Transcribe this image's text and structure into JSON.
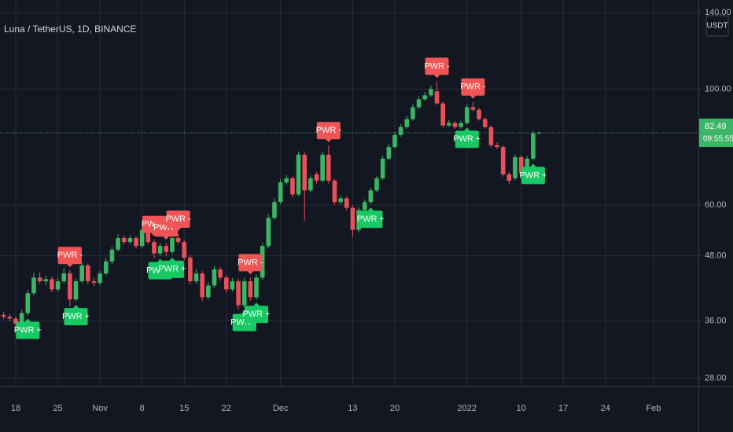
{
  "chart_data": {
    "type": "candlestick",
    "title": "Luna / TetherUS, 1D, BINANCE",
    "currency": "USDT",
    "countdown": "09:55:55",
    "log_scale": true,
    "grid": true,
    "up_color": "#3bb566",
    "down_color": "#e8515b",
    "buy_color": "#17c964",
    "sell_color": "#f05454",
    "ylim": [
      27,
      148
    ],
    "yticks": [
      {
        "value": 28,
        "label": "28.00"
      },
      {
        "value": 36,
        "label": "36.00"
      },
      {
        "value": 48,
        "label": "48.00"
      },
      {
        "value": 60,
        "label": "60.00"
      },
      {
        "value": 100,
        "label": "100.00"
      },
      {
        "value": 140,
        "label": "140.00"
      }
    ],
    "categories": [
      null,
      null,
      "18",
      null,
      null,
      null,
      null,
      null,
      null,
      "25",
      null,
      null,
      null,
      null,
      null,
      null,
      "Nov",
      null,
      null,
      null,
      null,
      null,
      null,
      "8",
      null,
      null,
      null,
      null,
      null,
      null,
      "15",
      null,
      null,
      null,
      null,
      null,
      null,
      "22",
      null,
      null,
      null,
      null,
      null,
      null,
      null,
      null,
      "Dec",
      null,
      null,
      null,
      null,
      null,
      null,
      null,
      null,
      null,
      null,
      null,
      "13",
      null,
      null,
      null,
      null,
      null,
      null,
      "20",
      null,
      null,
      null,
      null,
      null,
      null,
      null,
      null,
      null,
      null,
      null,
      "2022",
      null,
      null,
      null,
      null,
      null,
      null,
      null,
      null,
      "10",
      null,
      null,
      null,
      null,
      null,
      null,
      "17",
      null,
      null,
      null,
      null,
      null,
      null,
      "24",
      null,
      null,
      null,
      null,
      null,
      null,
      null,
      "Feb",
      null,
      null,
      null,
      null,
      null,
      null
    ],
    "open": [
      37.0,
      36.7,
      36.4,
      35.6,
      37.3,
      40.7,
      43.6,
      42.9,
      43.3,
      41.4,
      42.9,
      44.4,
      39.6,
      42.9,
      46.0,
      42.9,
      42.6,
      44.4,
      46.8,
      49.3,
      51.9,
      51.0,
      51.9,
      50.1,
      53.8,
      51.0,
      48.5,
      50.1,
      48.8,
      51.9,
      51.0,
      47.6,
      42.9,
      44.4,
      40.0,
      42.1,
      45.2,
      43.6,
      41.4,
      42.9,
      38.6,
      42.9,
      40.0,
      43.6,
      50.1,
      56.7,
      60.8,
      66.3,
      67.5,
      62.9,
      74.9,
      64.0,
      68.7,
      66.8,
      74.9,
      66.8,
      60.8,
      61.8,
      59.3,
      53.8,
      58.7,
      60.8,
      64.0,
      67.5,
      73.6,
      77.5,
      81.7,
      84.6,
      87.6,
      92.3,
      95.6,
      97.3,
      99.0,
      93.9,
      85.2,
      86.1,
      84.6,
      86.1,
      92.3,
      91.3,
      87.6,
      84.6,
      78.1,
      77.5,
      68.7,
      67.5,
      74.1,
      69.1,
      73.6,
      82.3,
      null,
      null,
      null,
      null,
      null,
      null,
      null,
      null,
      null,
      null,
      null,
      null,
      null,
      null,
      null,
      null,
      null,
      null,
      null,
      null,
      null,
      null,
      null,
      null,
      null
    ],
    "high": [
      37.5,
      37.1,
      36.8,
      37.8,
      41.3,
      44.5,
      44.6,
      44.0,
      43.8,
      43.5,
      45.5,
      45.0,
      43.4,
      46.6,
      46.4,
      43.5,
      44.9,
      47.5,
      50.0,
      52.8,
      52.5,
      52.6,
      52.3,
      54.5,
      54.6,
      51.6,
      50.8,
      50.8,
      52.6,
      52.8,
      51.5,
      48.1,
      45.2,
      44.9,
      42.8,
      45.9,
      45.7,
      44.1,
      43.5,
      43.4,
      43.5,
      43.6,
      44.2,
      50.8,
      57.6,
      61.8,
      67.2,
      68.5,
      68.1,
      76.0,
      75.8,
      68.4,
      69.5,
      75.9,
      78.0,
      67.4,
      62.6,
      62.4,
      59.9,
      59.5,
      61.5,
      64.8,
      68.3,
      74.5,
      78.5,
      82.8,
      85.7,
      88.8,
      93.5,
      96.8,
      98.6,
      101.5,
      103.5,
      94.6,
      87.2,
      86.9,
      87.0,
      93.4,
      94.5,
      92.0,
      88.3,
      85.2,
      79.0,
      78.1,
      69.5,
      75.0,
      74.8,
      74.4,
      83.2,
      82.9,
      null,
      null,
      null,
      null,
      null,
      null,
      null,
      null,
      null,
      null,
      null,
      null,
      null,
      null,
      null,
      null,
      null,
      null,
      null,
      null,
      null,
      null,
      null,
      null,
      null
    ],
    "low": [
      36.3,
      36.0,
      35.0,
      35.2,
      36.9,
      40.3,
      42.4,
      42.2,
      40.9,
      41.0,
      42.5,
      38.4,
      39.2,
      42.5,
      42.3,
      42.0,
      42.2,
      44.0,
      46.3,
      48.9,
      50.4,
      50.5,
      49.5,
      49.7,
      50.5,
      47.5,
      48.0,
      47.9,
      48.3,
      50.4,
      47.0,
      42.3,
      42.4,
      39.4,
      39.6,
      41.7,
      43.0,
      40.8,
      41.0,
      37.9,
      38.2,
      39.4,
      39.6,
      43.2,
      49.6,
      56.2,
      60.2,
      65.6,
      62.0,
      62.4,
      56.0,
      63.4,
      66.0,
      66.3,
      66.0,
      60.1,
      60.2,
      58.6,
      52.0,
      53.2,
      58.1,
      60.2,
      63.5,
      67.0,
      73.0,
      77.0,
      81.0,
      84.0,
      87.0,
      91.6,
      95.0,
      96.6,
      93.2,
      84.4,
      84.5,
      84.0,
      84.0,
      85.6,
      90.6,
      87.0,
      84.0,
      77.4,
      76.8,
      68.0,
      65.8,
      67.0,
      68.5,
      68.6,
      73.0,
      82.0,
      null,
      null,
      null,
      null,
      null,
      null,
      null,
      null,
      null,
      null,
      null,
      null,
      null,
      null,
      null,
      null,
      null,
      null,
      null,
      null,
      null,
      null,
      null,
      null,
      null
    ],
    "close": [
      36.7,
      36.4,
      35.6,
      37.3,
      40.7,
      43.6,
      42.9,
      43.3,
      41.4,
      42.9,
      44.4,
      39.6,
      42.9,
      46.0,
      42.9,
      42.6,
      44.4,
      46.8,
      49.3,
      51.9,
      51.0,
      51.9,
      50.1,
      53.8,
      51.0,
      48.5,
      50.1,
      48.8,
      51.9,
      51.0,
      47.6,
      42.9,
      44.4,
      40.0,
      42.1,
      45.2,
      43.6,
      41.4,
      42.9,
      38.6,
      42.9,
      40.0,
      43.6,
      50.1,
      56.7,
      60.8,
      66.3,
      67.5,
      62.9,
      74.9,
      64.0,
      67.5,
      66.8,
      74.9,
      66.8,
      60.8,
      61.8,
      59.3,
      53.8,
      58.7,
      60.8,
      64.0,
      67.5,
      73.6,
      77.5,
      81.7,
      84.6,
      87.6,
      92.3,
      95.6,
      97.3,
      100.0,
      93.9,
      85.2,
      86.1,
      84.6,
      86.1,
      92.3,
      91.3,
      87.6,
      84.6,
      78.1,
      77.5,
      68.7,
      66.8,
      74.1,
      69.1,
      73.6,
      82.3,
      82.49,
      null,
      null,
      null,
      null,
      null,
      null,
      null,
      null,
      null,
      null,
      null,
      null,
      null,
      null,
      null,
      null,
      null,
      null,
      null,
      null,
      null,
      null,
      null,
      null,
      null
    ],
    "sell_signals": {
      "label": "PWR -",
      "at": [
        11,
        25,
        27,
        29,
        41,
        54,
        72,
        78
      ]
    },
    "buy_signals": {
      "label": "PWR +",
      "at": [
        4,
        12,
        26,
        28,
        40,
        42,
        61,
        77,
        88
      ]
    }
  }
}
